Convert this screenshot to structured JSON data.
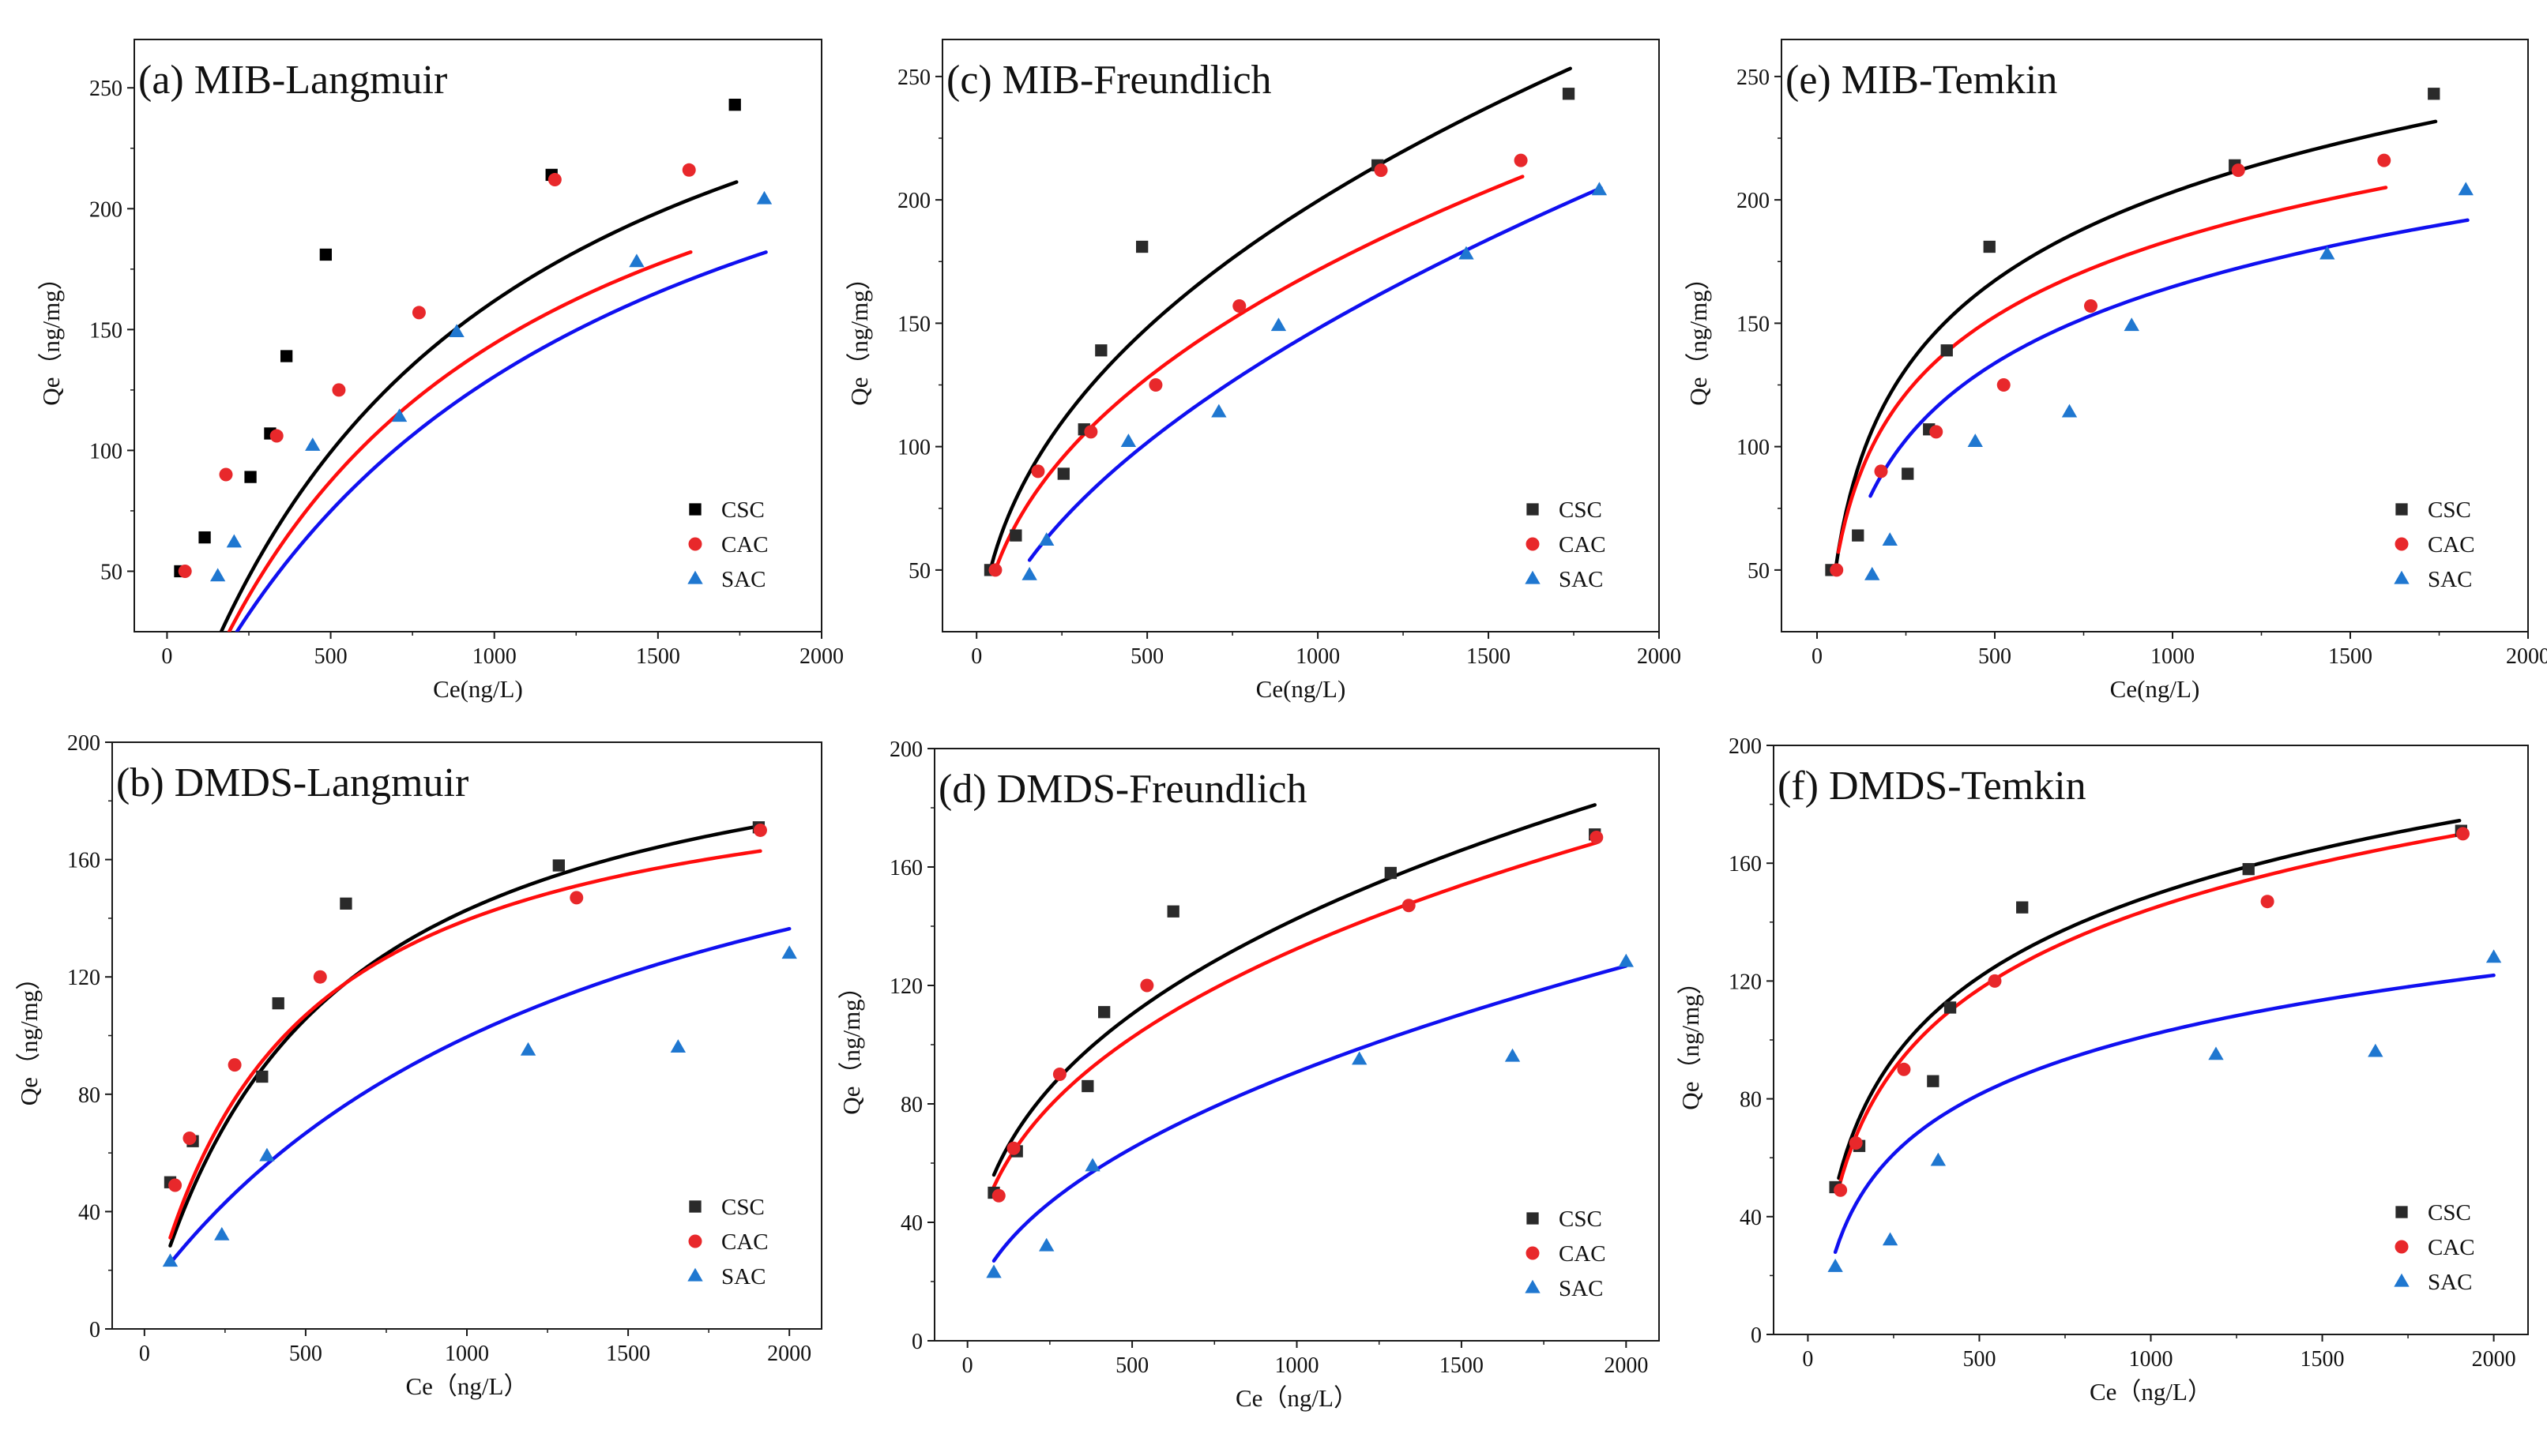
{
  "figure": {
    "series_colors": {
      "CSC": "#2a2a2a",
      "CAC": "#e8282b",
      "SAC": "#1f77d0"
    },
    "fit_colors": {
      "CSC": "#000000",
      "CAC": "#ff0d0d",
      "SAC": "#1010f0"
    }
  },
  "chart_data": [
    {
      "id": "a",
      "type": "scatter",
      "title": "(a) MIB-Langmuir",
      "xlabel": "Ce(ng/L)",
      "ylabel": "Qe（ng/mg）",
      "xlim": [
        -100,
        2000
      ],
      "ylim": [
        25,
        270
      ],
      "xticks": [
        0,
        500,
        1000,
        1500,
        2000
      ],
      "yticks": [
        50,
        100,
        150,
        200,
        250
      ],
      "csc_marker": "square-black",
      "legend": [
        "CSC",
        "CAC",
        "SAC"
      ],
      "series": [
        {
          "name": "CSC",
          "marker": "square",
          "x": [
            40,
            115,
            255,
            315,
            365,
            485,
            1175,
            1735
          ],
          "y": [
            50,
            64,
            89,
            107,
            139,
            181,
            214,
            243
          ]
        },
        {
          "name": "CAC",
          "marker": "circle",
          "x": [
            55,
            180,
            335,
            525,
            770,
            1185,
            1595
          ],
          "y": [
            50,
            90,
            106,
            125,
            157,
            212,
            216
          ]
        },
        {
          "name": "SAC",
          "marker": "triangle",
          "x": [
            155,
            205,
            445,
            710,
            885,
            1435,
            1825
          ],
          "y": [
            48,
            62,
            102,
            114,
            149,
            178,
            204
          ]
        }
      ],
      "fits": [
        {
          "name": "CSC",
          "model": "langmuir",
          "qm": 370,
          "k": 0.0011,
          "c": -32,
          "x": [
            50,
            1740
          ]
        },
        {
          "name": "CAC",
          "model": "langmuir",
          "qm": 335,
          "k": 0.00115,
          "c": -35,
          "x": [
            60,
            1600
          ]
        },
        {
          "name": "SAC",
          "model": "langmuir",
          "qm": 345,
          "k": 0.00085,
          "c": -28,
          "x": [
            150,
            1830
          ]
        }
      ]
    },
    {
      "id": "c",
      "type": "scatter",
      "title": "(c) MIB-Freundlich",
      "xlabel": "Ce(ng/L)",
      "ylabel": "Qe（ng/mg）",
      "xlim": [
        -100,
        2000
      ],
      "ylim": [
        25,
        265
      ],
      "xticks": [
        0,
        500,
        1000,
        1500,
        2000
      ],
      "yticks": [
        50,
        100,
        150,
        200,
        250
      ],
      "legend": [
        "CSC",
        "CAC",
        "SAC"
      ],
      "series": [
        {
          "name": "CSC",
          "marker": "square",
          "x": [
            40,
            115,
            255,
            315,
            365,
            485,
            1175,
            1735
          ],
          "y": [
            50,
            64,
            89,
            107,
            139,
            181,
            214,
            243
          ]
        },
        {
          "name": "CAC",
          "marker": "circle",
          "x": [
            55,
            180,
            335,
            525,
            770,
            1185,
            1595
          ],
          "y": [
            50,
            90,
            106,
            125,
            157,
            212,
            216
          ]
        },
        {
          "name": "SAC",
          "marker": "triangle",
          "x": [
            155,
            205,
            445,
            710,
            885,
            1435,
            1825
          ],
          "y": [
            48,
            62,
            102,
            114,
            149,
            178,
            204
          ]
        }
      ],
      "fits": [
        {
          "name": "CSC",
          "model": "power",
          "a": 50,
          "x0": 40,
          "n": 0.43,
          "x": [
            40,
            1740
          ]
        },
        {
          "name": "CAC",
          "model": "power",
          "a": 50,
          "x0": 55,
          "n": 0.425,
          "x": [
            55,
            1600
          ]
        },
        {
          "name": "SAC",
          "model": "power",
          "a": 54,
          "x0": 155,
          "n": 0.54,
          "x": [
            155,
            1830
          ]
        }
      ]
    },
    {
      "id": "e",
      "type": "scatter",
      "title": "(e) MIB-Temkin",
      "xlabel": "Ce(ng/L)",
      "ylabel": "Qe（ng/mg）",
      "xlim": [
        -100,
        2000
      ],
      "ylim": [
        25,
        265
      ],
      "xticks": [
        0,
        500,
        1000,
        1500,
        2000
      ],
      "yticks": [
        50,
        100,
        150,
        200,
        250
      ],
      "legend": [
        "CSC",
        "CAC",
        "SAC"
      ],
      "series": [
        {
          "name": "CSC",
          "marker": "square",
          "x": [
            40,
            115,
            255,
            315,
            365,
            485,
            1175,
            1735
          ],
          "y": [
            50,
            64,
            89,
            107,
            139,
            181,
            214,
            243
          ]
        },
        {
          "name": "CAC",
          "marker": "circle",
          "x": [
            55,
            180,
            335,
            525,
            770,
            1185,
            1595
          ],
          "y": [
            50,
            90,
            106,
            125,
            157,
            212,
            216
          ]
        },
        {
          "name": "SAC",
          "marker": "triangle",
          "x": [
            155,
            205,
            445,
            710,
            885,
            1435,
            1825
          ],
          "y": [
            48,
            62,
            102,
            114,
            149,
            178,
            204
          ]
        }
      ],
      "fits": [
        {
          "name": "CSC",
          "model": "log",
          "a": -154,
          "b": 51.7,
          "x": [
            50,
            1740
          ]
        },
        {
          "name": "CAC",
          "model": "log",
          "a": -127,
          "b": 45,
          "x": [
            60,
            1600
          ]
        },
        {
          "name": "SAC",
          "model": "log",
          "a": -144,
          "b": 44.7,
          "x": [
            150,
            1830
          ]
        }
      ]
    },
    {
      "id": "b",
      "type": "scatter",
      "title": "(b) DMDS-Langmuir",
      "xlabel": "Ce（ng/L）",
      "ylabel": "Qe（ng/mg）",
      "xlim": [
        -100,
        2100
      ],
      "ylim": [
        0,
        200
      ],
      "xticks": [
        0,
        500,
        1000,
        1500,
        2000
      ],
      "yticks": [
        0,
        40,
        80,
        120,
        160,
        200
      ],
      "legend": [
        "CSC",
        "CAC",
        "SAC"
      ],
      "series": [
        {
          "name": "CSC",
          "marker": "square",
          "x": [
            80,
            150,
            365,
            415,
            625,
            1285,
            1905
          ],
          "y": [
            50,
            64,
            86,
            111,
            145,
            158,
            171
          ]
        },
        {
          "name": "CAC",
          "marker": "circle",
          "x": [
            95,
            140,
            280,
            545,
            1340,
            1910
          ],
          "y": [
            49,
            65,
            90,
            120,
            147,
            170
          ]
        },
        {
          "name": "SAC",
          "marker": "triangle",
          "x": [
            80,
            240,
            380,
            1190,
            1655,
            2000
          ],
          "y": [
            23,
            32,
            59,
            95,
            96,
            128
          ]
        }
      ],
      "fits": [
        {
          "name": "CSC",
          "model": "langmuir",
          "qm": 220,
          "k": 0.00185,
          "c": 0,
          "x": [
            80,
            1900
          ]
        },
        {
          "name": "CAC",
          "model": "langmuir",
          "qm": 200,
          "k": 0.0023,
          "c": 0,
          "x": [
            80,
            1910
          ]
        },
        {
          "name": "SAC",
          "model": "langmuir",
          "qm": 215,
          "k": 0.0007,
          "c": 11,
          "x": [
            80,
            2000
          ]
        }
      ]
    },
    {
      "id": "d",
      "type": "scatter",
      "title": "(d) DMDS-Freundlich",
      "xlabel": "Ce（ng/L）",
      "ylabel": "Qe（ng/mg）",
      "xlim": [
        -100,
        2100
      ],
      "ylim": [
        0,
        200
      ],
      "xticks": [
        0,
        500,
        1000,
        1500,
        2000
      ],
      "yticks": [
        0,
        40,
        80,
        120,
        160,
        200
      ],
      "legend": [
        "CSC",
        "CAC",
        "SAC"
      ],
      "series": [
        {
          "name": "CSC",
          "marker": "square",
          "x": [
            80,
            150,
            365,
            415,
            625,
            1285,
            1905
          ],
          "y": [
            50,
            64,
            86,
            111,
            145,
            158,
            171
          ]
        },
        {
          "name": "CAC",
          "marker": "circle",
          "x": [
            95,
            140,
            280,
            545,
            1340,
            1910
          ],
          "y": [
            49,
            65,
            90,
            120,
            147,
            170
          ]
        },
        {
          "name": "SAC",
          "marker": "triangle",
          "x": [
            80,
            240,
            380,
            1190,
            1655,
            2000
          ],
          "y": [
            23,
            32,
            59,
            95,
            96,
            128
          ]
        }
      ],
      "fits": [
        {
          "name": "CSC",
          "model": "power",
          "a": 56,
          "x0": 80,
          "n": 0.37,
          "x": [
            80,
            1905
          ]
        },
        {
          "name": "CAC",
          "model": "power",
          "a": 52,
          "x0": 80,
          "n": 0.37,
          "x": [
            80,
            1910
          ]
        },
        {
          "name": "SAC",
          "model": "power",
          "a": 27,
          "x0": 80,
          "n": 0.48,
          "x": [
            80,
            2000
          ]
        }
      ]
    },
    {
      "id": "f",
      "type": "scatter",
      "title": "(f) DMDS-Temkin",
      "xlabel": "Ce（ng/L）",
      "ylabel": "Qe（ng/mg）",
      "xlim": [
        -100,
        2100
      ],
      "ylim": [
        0,
        200
      ],
      "xticks": [
        0,
        500,
        1000,
        1500,
        2000
      ],
      "yticks": [
        0,
        40,
        80,
        120,
        160,
        200
      ],
      "legend": [
        "CSC",
        "CAC",
        "SAC"
      ],
      "series": [
        {
          "name": "CSC",
          "marker": "square",
          "x": [
            80,
            150,
            365,
            415,
            625,
            1285,
            1905
          ],
          "y": [
            50,
            64,
            86,
            111,
            145,
            158,
            171
          ]
        },
        {
          "name": "CAC",
          "marker": "circle",
          "x": [
            95,
            140,
            280,
            545,
            1340,
            1910
          ],
          "y": [
            49,
            65,
            90,
            120,
            147,
            170
          ]
        },
        {
          "name": "SAC",
          "marker": "triangle",
          "x": [
            80,
            240,
            380,
            1190,
            1655,
            2000
          ],
          "y": [
            23,
            32,
            59,
            95,
            96,
            128
          ]
        }
      ],
      "fits": [
        {
          "name": "CSC",
          "model": "log",
          "a": -126,
          "b": 39.8,
          "x": [
            90,
            1900
          ]
        },
        {
          "name": "CAC",
          "model": "log",
          "a": -127,
          "b": 39.3,
          "x": [
            90,
            1910
          ]
        },
        {
          "name": "SAC",
          "model": "log",
          "a": -100,
          "b": 29.2,
          "x": [
            80,
            2000
          ]
        }
      ]
    }
  ]
}
